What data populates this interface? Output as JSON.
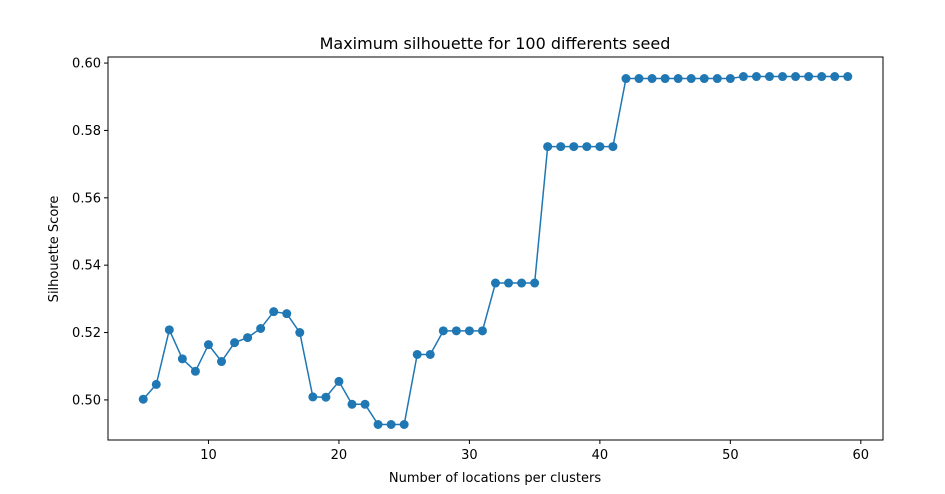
{
  "chart_data": {
    "type": "line",
    "title": "Maximum silhouette for 100 differents seed",
    "xlabel": "Number of locations per clusters",
    "ylabel": "Silhouette Score",
    "xlim": [
      2.3,
      61.7
    ],
    "ylim": [
      0.4881,
      0.6018
    ],
    "xticks": [
      10,
      20,
      30,
      40,
      50,
      60
    ],
    "yticks": [
      0.5,
      0.52,
      0.54,
      0.56,
      0.58,
      0.6
    ],
    "ytick_labels": [
      "0.50",
      "0.52",
      "0.54",
      "0.56",
      "0.58",
      "0.60"
    ],
    "grid": false,
    "color": "#1f77b4",
    "marker": "circle",
    "series": [
      {
        "x": [
          5,
          6,
          7,
          8,
          9,
          10,
          11,
          12,
          13,
          14,
          15,
          16,
          17,
          18,
          19,
          20,
          21,
          22,
          23,
          24,
          25,
          26,
          27,
          28,
          29,
          30,
          31,
          32,
          33,
          34,
          35,
          36,
          37,
          38,
          39,
          40,
          41,
          42,
          43,
          44,
          45,
          46,
          47,
          48,
          49,
          50,
          51,
          52,
          53,
          54,
          55,
          56,
          57,
          58,
          59
        ],
        "y": [
          0.5002,
          0.5046,
          0.5208,
          0.5122,
          0.5085,
          0.5164,
          0.5114,
          0.517,
          0.5185,
          0.5212,
          0.5262,
          0.5256,
          0.52,
          0.5009,
          0.5008,
          0.5055,
          0.4987,
          0.4987,
          0.4927,
          0.4927,
          0.4927,
          0.5135,
          0.5135,
          0.5205,
          0.5205,
          0.5205,
          0.5205,
          0.5347,
          0.5347,
          0.5347,
          0.5347,
          0.5752,
          0.5752,
          0.5752,
          0.5752,
          0.5752,
          0.5752,
          0.5954,
          0.5954,
          0.5954,
          0.5954,
          0.5954,
          0.5954,
          0.5954,
          0.5954,
          0.5954,
          0.596,
          0.596,
          0.596,
          0.596,
          0.596,
          0.596,
          0.596,
          0.596,
          0.596
        ]
      }
    ]
  }
}
